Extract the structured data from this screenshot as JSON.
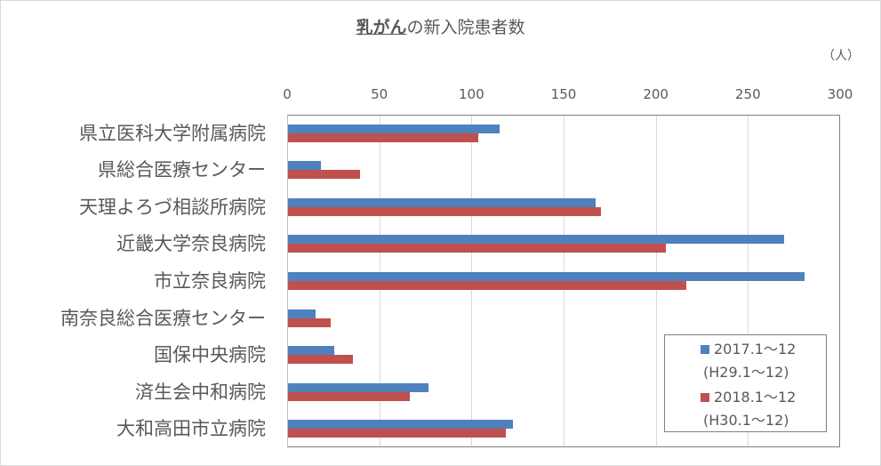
{
  "chart_data": {
    "type": "bar",
    "orientation": "horizontal",
    "title": "乳がんの新入院患者数",
    "title_underlined_part": "乳がん",
    "title_rest": "の新入院患者数",
    "unit_label": "（人）",
    "xlabel": "",
    "ylabel": "",
    "xlim": [
      0,
      300
    ],
    "x_ticks": [
      "0",
      "50",
      "100",
      "150",
      "200",
      "250",
      "300"
    ],
    "x_axis_position": "top",
    "grid": true,
    "legend_position": "bottom-right inside plot",
    "categories": [
      "県立医科大学附属病院",
      "県総合医療センター",
      "天理よろづ相談所病院",
      "近畿大学奈良病院",
      "市立奈良病院",
      "南奈良総合医療センター",
      "国保中央病院",
      "済生会中和病院",
      "大和高田市立病院"
    ],
    "series": [
      {
        "name": "2017.1〜12 (H29.1〜12)",
        "legend_line1": "2017.1〜12",
        "legend_line2": "(H29.1〜12)",
        "color": "#4f81bd",
        "values": [
          115,
          18,
          167,
          269,
          280,
          15,
          25,
          76,
          122
        ]
      },
      {
        "name": "2018.1〜12 (H30.1〜12)",
        "legend_line1": "2018.1〜12",
        "legend_line2": "(H30.1〜12)",
        "color": "#c0504d",
        "values": [
          103,
          39,
          170,
          205,
          216,
          23,
          35,
          66,
          118
        ]
      }
    ]
  }
}
